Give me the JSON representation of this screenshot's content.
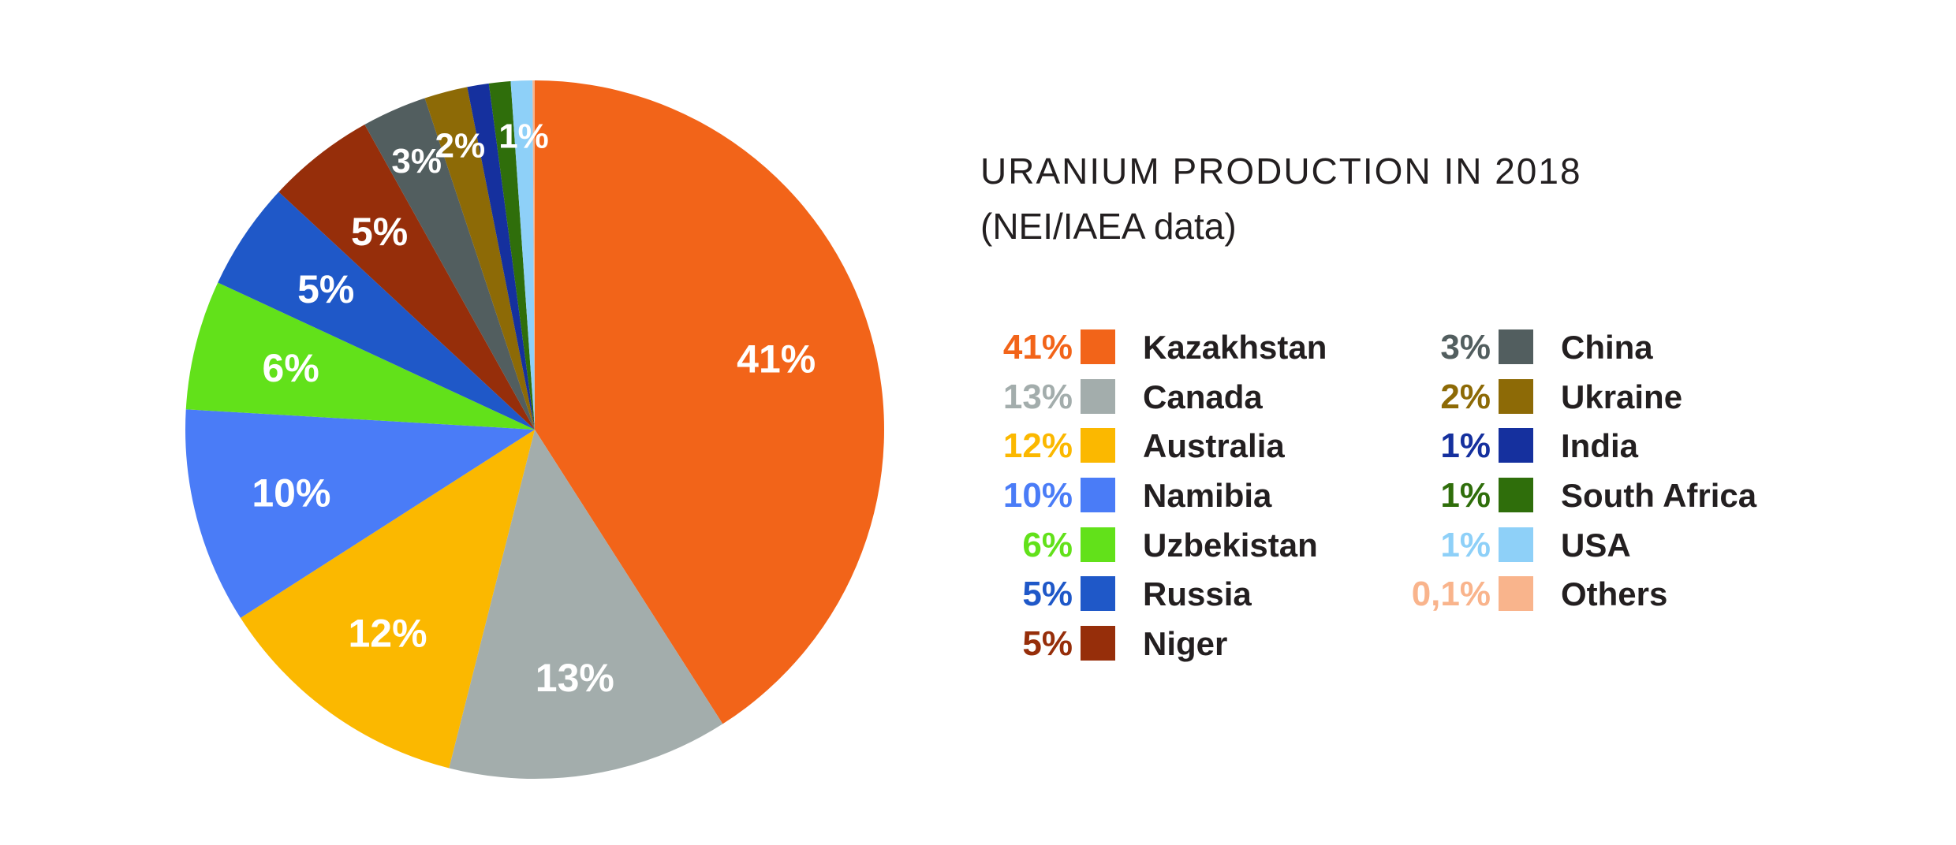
{
  "chart_data": {
    "type": "pie",
    "title": "URANIUM PRODUCTION IN 2018",
    "subtitle": "(NEI/IAEA data)",
    "units": "%",
    "start_angle_deg": 0,
    "direction": "clockwise",
    "slices": [
      {
        "label": "Kazakhstan",
        "value": 41,
        "display": "41%",
        "slice_label": "41%",
        "color": "#f26419",
        "label_color": "#ffffff",
        "legend_value_color": "#f26419"
      },
      {
        "label": "Canada",
        "value": 13,
        "display": "13%",
        "slice_label": "13%",
        "color": "#a3adac",
        "label_color": "#ffffff",
        "legend_value_color": "#a3adac"
      },
      {
        "label": "Australia",
        "value": 12,
        "display": "12%",
        "slice_label": "12%",
        "color": "#fbb800",
        "label_color": "#ffffff",
        "legend_value_color": "#fbb800"
      },
      {
        "label": "Namibia",
        "value": 10,
        "display": "10%",
        "slice_label": "10%",
        "color": "#4a7cf7",
        "label_color": "#ffffff",
        "legend_value_color": "#4a7cf7"
      },
      {
        "label": "Uzbekistan",
        "value": 6,
        "display": "6%",
        "slice_label": "6%",
        "color": "#62e11a",
        "label_color": "#ffffff",
        "legend_value_color": "#62e11a"
      },
      {
        "label": "Russia",
        "value": 5,
        "display": "5%",
        "slice_label": "5%",
        "color": "#1f58c8",
        "label_color": "#ffffff",
        "legend_value_color": "#1f58c8"
      },
      {
        "label": "Niger",
        "value": 5,
        "display": "5%",
        "slice_label": "5%",
        "color": "#962e0a",
        "label_color": "#ffffff",
        "legend_value_color": "#962e0a"
      },
      {
        "label": "China",
        "value": 3,
        "display": "3%",
        "slice_label": "3%",
        "color": "#525e5f",
        "label_color": "#ffffff",
        "legend_value_color": "#525e5f"
      },
      {
        "label": "Ukraine",
        "value": 2,
        "display": "2%",
        "slice_label": "2%",
        "color": "#8d6a06",
        "label_color": "#ffffff",
        "legend_value_color": "#8d6a06"
      },
      {
        "label": "India",
        "value": 1,
        "display": "1%",
        "slice_label": "",
        "color": "#15309e",
        "label_color": "#ffffff",
        "legend_value_color": "#15309e"
      },
      {
        "label": "South Africa",
        "value": 1,
        "display": "1%",
        "slice_label": "",
        "color": "#2f6e0b",
        "label_color": "#ffffff",
        "legend_value_color": "#2f6e0b"
      },
      {
        "label": "USA",
        "value": 1,
        "display": "1%",
        "slice_label": "1%",
        "color": "#8ed0f8",
        "label_color": "#ffffff",
        "legend_value_color": "#8ed0f8"
      },
      {
        "label": "Others",
        "value": 0.1,
        "display": "0,1%",
        "slice_label": "",
        "color": "#f9b48c",
        "label_color": "#ffffff",
        "legend_value_color": "#f9b48c"
      }
    ],
    "legend": {
      "placement": "right",
      "columns": [
        [
          "Kazakhstan",
          "Canada",
          "Australia",
          "Namibia",
          "Uzbekistan",
          "Russia",
          "Niger"
        ],
        [
          "China",
          "Ukraine",
          "India",
          "South Africa",
          "USA",
          "Others"
        ]
      ]
    }
  }
}
